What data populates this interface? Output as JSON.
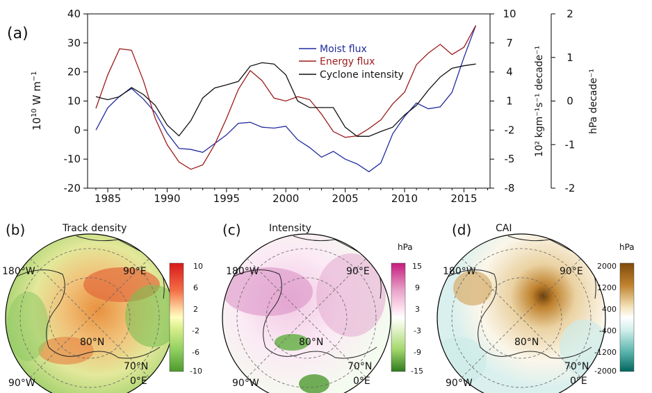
{
  "panel_a": {
    "tag": "(a)",
    "left_axis_label": "10",
    "left_axis_sup": "10",
    "left_axis_unit": " W m",
    "left_axis_unit_sup": "−1",
    "right1_axis_label": "10² kgm⁻¹s⁻¹ decade⁻¹",
    "right2_axis_label": "hPa decade⁻¹",
    "legend": [
      "Moist flux",
      "Energy flux",
      "Cyclone intensity"
    ]
  },
  "panel_b": {
    "tag": "(b)",
    "title": "Track density",
    "cb_unit": "",
    "cb_ticks": [
      "10",
      "6",
      "2",
      "-2",
      "-6",
      "-10"
    ]
  },
  "panel_c": {
    "tag": "(c)",
    "title": "Intensity",
    "cb_unit": "hPa",
    "cb_ticks": [
      "15",
      "9",
      "3",
      "-3",
      "-9",
      "-15"
    ]
  },
  "panel_d": {
    "tag": "(d)",
    "title": "CAI",
    "cb_unit": "hPa",
    "cb_ticks": [
      "2000",
      "1200",
      "400",
      "-400",
      "-1200",
      "-2000"
    ]
  },
  "map_labels": {
    "lon180": "180°W",
    "lon90e": "90°E",
    "lat80": "80°N",
    "lat70": "70°N",
    "lon90w": "90°W",
    "lon0": "0°E"
  },
  "colors": {
    "moist": "#1f2a9e",
    "energy": "#9c1b1b",
    "cyclone": "#111111"
  },
  "chart_data": [
    {
      "type": "line",
      "title": "",
      "xlabel": "",
      "x": [
        1984,
        1985,
        1986,
        1987,
        1988,
        1989,
        1990,
        1991,
        1992,
        1993,
        1994,
        1995,
        1996,
        1997,
        1998,
        1999,
        2000,
        2001,
        2002,
        2003,
        2004,
        2005,
        2006,
        2007,
        2008,
        2009,
        2010,
        2011,
        2012,
        2013,
        2014,
        2015,
        2016
      ],
      "xlim": [
        1983.3,
        2017.2
      ],
      "xticks": [
        1985,
        1990,
        1995,
        2000,
        2005,
        2010,
        2015
      ],
      "axes": {
        "left": {
          "label": "10^10 W m^-1",
          "ylim": [
            -20,
            40
          ],
          "ticks": [
            -20,
            -10,
            0,
            10,
            20,
            30,
            40
          ]
        },
        "right1": {
          "label": "10^2 kgm^-1s^-1 decade^-1",
          "ylim": [
            -8,
            10
          ],
          "ticks": [
            -8,
            -5,
            -2,
            1,
            4,
            7,
            10
          ]
        },
        "right2": {
          "label": "hPa decade^-1",
          "ylim": [
            -2,
            2
          ],
          "ticks": [
            -2,
            -1,
            0,
            1,
            2
          ]
        }
      },
      "legend_position": "top-right",
      "series": [
        {
          "name": "Moist flux",
          "axis": "right1",
          "color": "#1f2a9e",
          "values": [
            -2.0,
            0.3,
            1.5,
            2.3,
            1.2,
            -0.2,
            -2.3,
            -3.9,
            -4.0,
            -4.3,
            -3.4,
            -2.5,
            -1.3,
            -1.2,
            -1.7,
            -1.8,
            -1.6,
            -3.0,
            -3.8,
            -4.8,
            -4.2,
            -5.0,
            -5.5,
            -6.3,
            -5.4,
            -2.4,
            -0.6,
            0.8,
            0.2,
            0.4,
            1.9,
            5.5,
            8.8
          ]
        },
        {
          "name": "Energy flux",
          "axis": "left",
          "color": "#9c1b1b",
          "values": [
            7.5,
            19.0,
            28.0,
            27.5,
            17.0,
            4.0,
            -5.0,
            -11.0,
            -13.5,
            -12.0,
            -5.0,
            4.0,
            14.0,
            20.5,
            17.0,
            11.0,
            10.0,
            11.5,
            10.5,
            5.5,
            -0.5,
            -2.5,
            -2.0,
            0.5,
            3.5,
            9.0,
            13.0,
            22.5,
            26.5,
            29.5,
            26.0,
            28.5,
            36.0
          ]
        },
        {
          "name": "Cyclone intensity",
          "axis": "right2",
          "color": "#111111",
          "values": [
            0.1,
            0.03,
            0.1,
            0.31,
            0.15,
            -0.1,
            -0.55,
            -0.8,
            -0.45,
            0.07,
            0.3,
            0.37,
            0.45,
            0.8,
            0.88,
            0.85,
            0.6,
            0.0,
            -0.15,
            -0.15,
            -0.15,
            -0.6,
            -0.81,
            -0.81,
            -0.7,
            -0.6,
            -0.32,
            -0.1,
            0.25,
            0.55,
            0.75,
            0.81,
            0.85
          ]
        }
      ]
    }
  ]
}
